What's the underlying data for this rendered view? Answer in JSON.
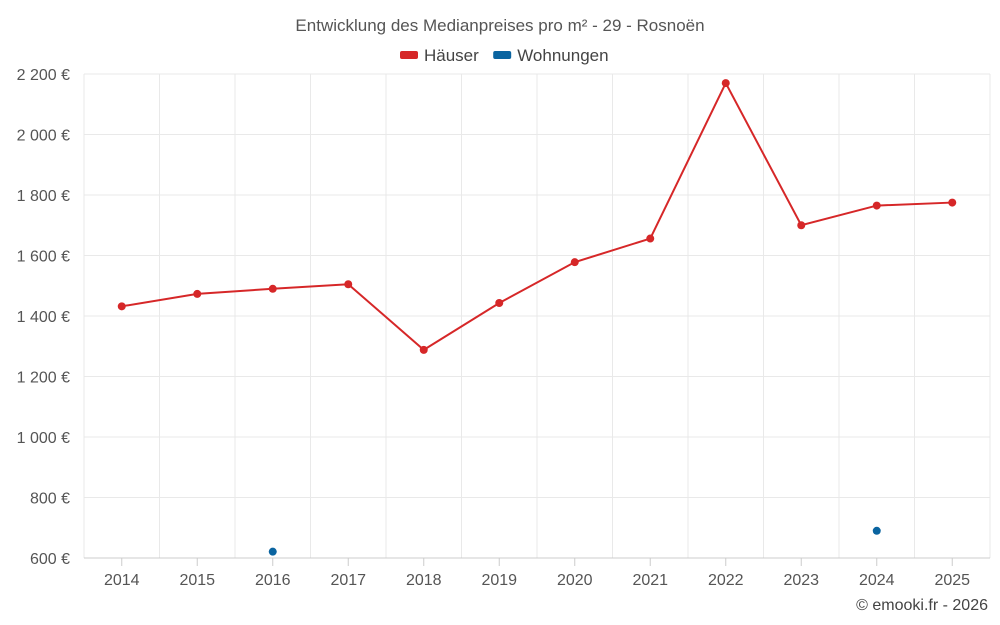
{
  "chart_data": {
    "type": "line",
    "title": "Entwicklung des Medianpreises pro m² - 29 - Rosnoën",
    "categories": [
      "2014",
      "2015",
      "2016",
      "2017",
      "2018",
      "2019",
      "2020",
      "2021",
      "2022",
      "2023",
      "2024",
      "2025"
    ],
    "series": [
      {
        "name": "Häuser",
        "color": "#d62728",
        "values": [
          1432,
          1473,
          1490,
          1505,
          1288,
          1443,
          1578,
          1656,
          2170,
          1700,
          1765,
          1775
        ]
      },
      {
        "name": "Wohnungen",
        "color": "#0a64a0",
        "values": [
          null,
          null,
          621,
          null,
          null,
          null,
          null,
          null,
          null,
          null,
          690,
          null
        ]
      }
    ],
    "ylim": [
      600,
      2200
    ],
    "yticks": [
      600,
      800,
      1000,
      1200,
      1400,
      1600,
      1800,
      2000,
      2200
    ],
    "ytick_labels": [
      "600 €",
      "800 €",
      "1 000 €",
      "1 200 €",
      "1 400 €",
      "1 600 €",
      "1 800 €",
      "2 000 €",
      "2 200 €"
    ],
    "xlabel": "",
    "ylabel": "",
    "legend": "top-center",
    "grid": true
  },
  "credit": "© emooki.fr - 2026"
}
